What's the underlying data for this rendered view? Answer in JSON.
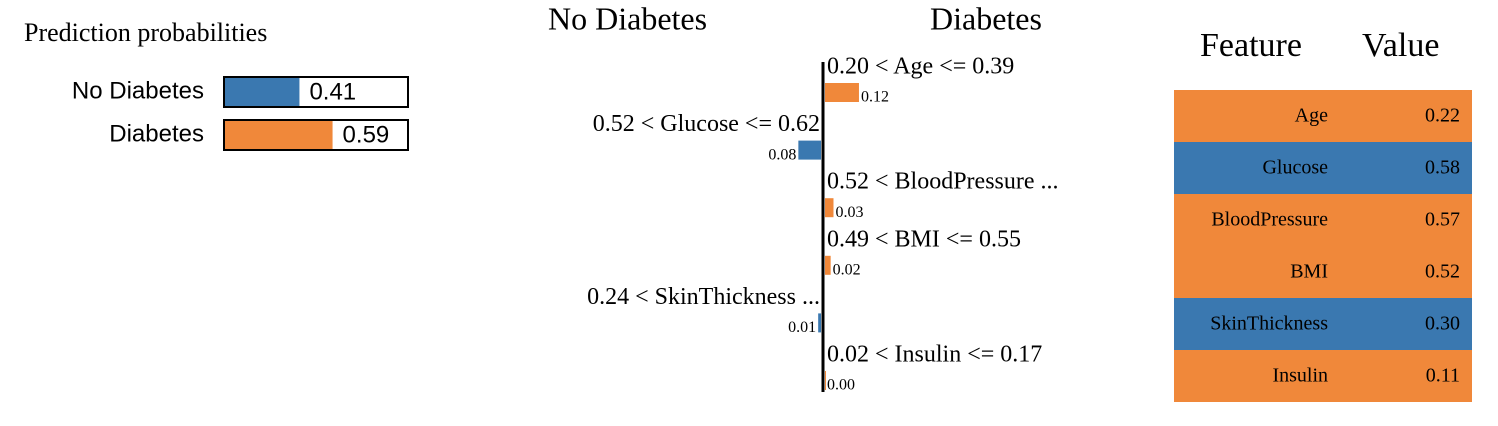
{
  "prediction_probabilities": {
    "title": "Prediction probabilities",
    "xlim": [
      0,
      1
    ],
    "classes": [
      {
        "name": "No Diabetes",
        "color": "#3a78b0",
        "value": 0.41
      },
      {
        "name": "Diabetes",
        "color": "#f0883a",
        "value": 0.59
      }
    ]
  },
  "explanation": {
    "negative_label": "No Diabetes",
    "positive_label": "Diabetes",
    "negative_color": "#3a78b0",
    "positive_color": "#f0883a",
    "features": [
      "0.20 < Age <= 0.39",
      "0.52 < Glucose <= 0.62",
      "0.52 < BloodPressure ...",
      "0.49 < BMI <= 0.55",
      "0.24 < SkinThickness ...",
      "0.02 < Insulin <= 0.17"
    ],
    "values": [
      0.12,
      -0.08,
      0.03,
      0.02,
      -0.01,
      0.0
    ],
    "value_labels": [
      "0.12",
      "0.08",
      "0.03",
      "0.02",
      "0.01",
      "0.00"
    ]
  },
  "table": {
    "header": [
      "Feature",
      "Value"
    ],
    "rows": [
      {
        "cells": [
          "Age",
          "0.22"
        ],
        "color": "#f0883a"
      },
      {
        "cells": [
          "Glucose",
          "0.58"
        ],
        "color": "#3a78b0"
      },
      {
        "cells": [
          "BloodPressure",
          "0.57"
        ],
        "color": "#f0883a"
      },
      {
        "cells": [
          "BMI",
          "0.52"
        ],
        "color": "#f0883a"
      },
      {
        "cells": [
          "SkinThickness",
          "0.30"
        ],
        "color": "#3a78b0"
      },
      {
        "cells": [
          "Insulin",
          "0.11"
        ],
        "color": "#f0883a"
      }
    ]
  }
}
